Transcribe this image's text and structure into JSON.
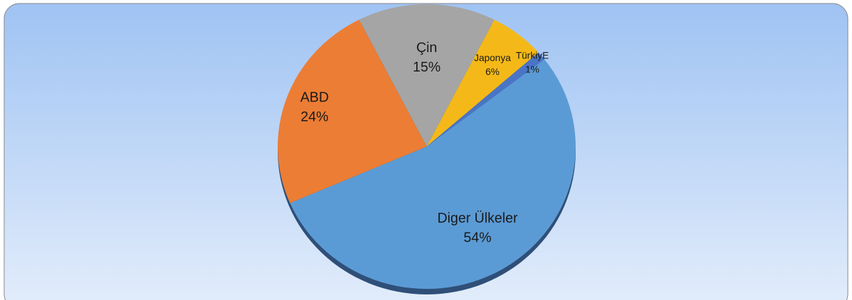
{
  "chart_data": {
    "type": "pie",
    "categories": [
      "Çin",
      "Japonya",
      "TürkiyE",
      "Diger Ülkeler",
      "ABD"
    ],
    "values": [
      15,
      6,
      1,
      54,
      24
    ],
    "value_labels": [
      "15%",
      "6%",
      "1%",
      "54%",
      "24%"
    ],
    "colors": [
      "#a5a5a5",
      "#f4b918",
      "#4a74c6",
      "#5b9bd5",
      "#ec7d35"
    ]
  }
}
